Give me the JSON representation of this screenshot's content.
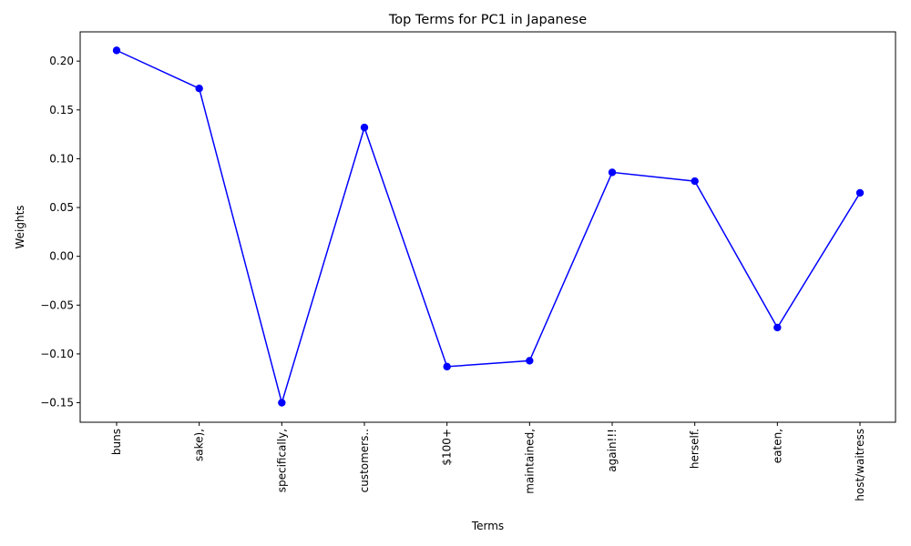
{
  "chart_data": {
    "type": "line",
    "title": "Top Terms for PC1 in Japanese",
    "xlabel": "Terms",
    "ylabel": "Weights",
    "categories": [
      "buns",
      "sake),",
      "specifically,",
      "customers..",
      "$100+",
      "maintained,",
      "again!!!",
      "herself.",
      "eaten,",
      "host/waitress"
    ],
    "series": [
      {
        "values": [
          0.211,
          0.172,
          -0.15,
          0.132,
          -0.113,
          -0.107,
          0.086,
          0.077,
          -0.073,
          0.065
        ]
      }
    ],
    "ylim": [
      -0.17,
      0.23
    ],
    "yticks": [
      -0.15,
      -0.1,
      -0.05,
      0.0,
      0.05,
      0.1,
      0.15,
      0.2
    ],
    "ytick_labels": [
      "−0.15",
      "−0.10",
      "−0.05",
      "0.00",
      "0.05",
      "0.10",
      "0.15",
      "0.20"
    ],
    "grid": false,
    "line_color": "#0000ff",
    "marker": "circle"
  }
}
